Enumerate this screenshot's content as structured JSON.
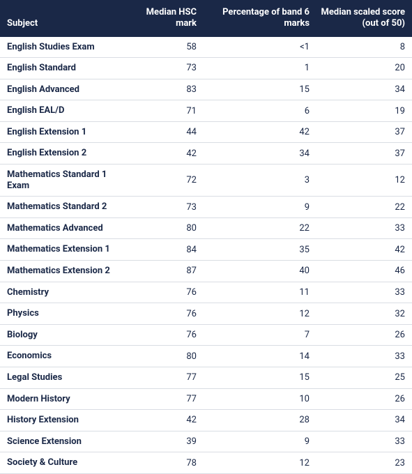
{
  "table": {
    "header_bg": "#1a2847",
    "header_color": "#ffffff",
    "row_text_color": "#1a2847",
    "border_color": "#d9dde3",
    "columns": [
      {
        "key": "subject",
        "label": "Subject",
        "align": "left"
      },
      {
        "key": "mark",
        "label": "Median HSC mark",
        "align": "right"
      },
      {
        "key": "pct",
        "label": "Percentage of band 6 marks",
        "align": "right"
      },
      {
        "key": "score",
        "label": "Median scaled score (out of 50)",
        "align": "right"
      }
    ],
    "rows": [
      {
        "subject": "English Studies Exam",
        "mark": "58",
        "pct": "<1",
        "score": "8"
      },
      {
        "subject": "English Standard",
        "mark": "73",
        "pct": "1",
        "score": "20"
      },
      {
        "subject": "English Advanced",
        "mark": "83",
        "pct": "15",
        "score": "34"
      },
      {
        "subject": "English EAL/D",
        "mark": "71",
        "pct": "6",
        "score": "19"
      },
      {
        "subject": "English Extension 1",
        "mark": "44",
        "pct": "42",
        "score": "37"
      },
      {
        "subject": "English Extension 2",
        "mark": "42",
        "pct": "34",
        "score": "37"
      },
      {
        "subject": "Mathematics Standard 1 Exam",
        "mark": "72",
        "pct": "3",
        "score": "12"
      },
      {
        "subject": "Mathematics Standard 2",
        "mark": "73",
        "pct": "9",
        "score": "22"
      },
      {
        "subject": "Mathematics Advanced",
        "mark": "80",
        "pct": "22",
        "score": "33"
      },
      {
        "subject": "Mathematics Extension 1",
        "mark": "84",
        "pct": "35",
        "score": "42"
      },
      {
        "subject": "Mathematics Extension 2",
        "mark": "87",
        "pct": "40",
        "score": "46"
      },
      {
        "subject": "Chemistry",
        "mark": "76",
        "pct": "11",
        "score": "33"
      },
      {
        "subject": "Physics",
        "mark": "76",
        "pct": "12",
        "score": "32"
      },
      {
        "subject": "Biology",
        "mark": "76",
        "pct": "7",
        "score": "26"
      },
      {
        "subject": "Economics",
        "mark": "80",
        "pct": "14",
        "score": "33"
      },
      {
        "subject": "Legal Studies",
        "mark": "77",
        "pct": "15",
        "score": "25"
      },
      {
        "subject": "Modern History",
        "mark": "77",
        "pct": "10",
        "score": "26"
      },
      {
        "subject": "History Extension",
        "mark": "42",
        "pct": "28",
        "score": "34"
      },
      {
        "subject": "Science Extension",
        "mark": "39",
        "pct": "9",
        "score": "33"
      },
      {
        "subject": "Society & Culture",
        "mark": "78",
        "pct": "12",
        "score": "23"
      }
    ]
  }
}
